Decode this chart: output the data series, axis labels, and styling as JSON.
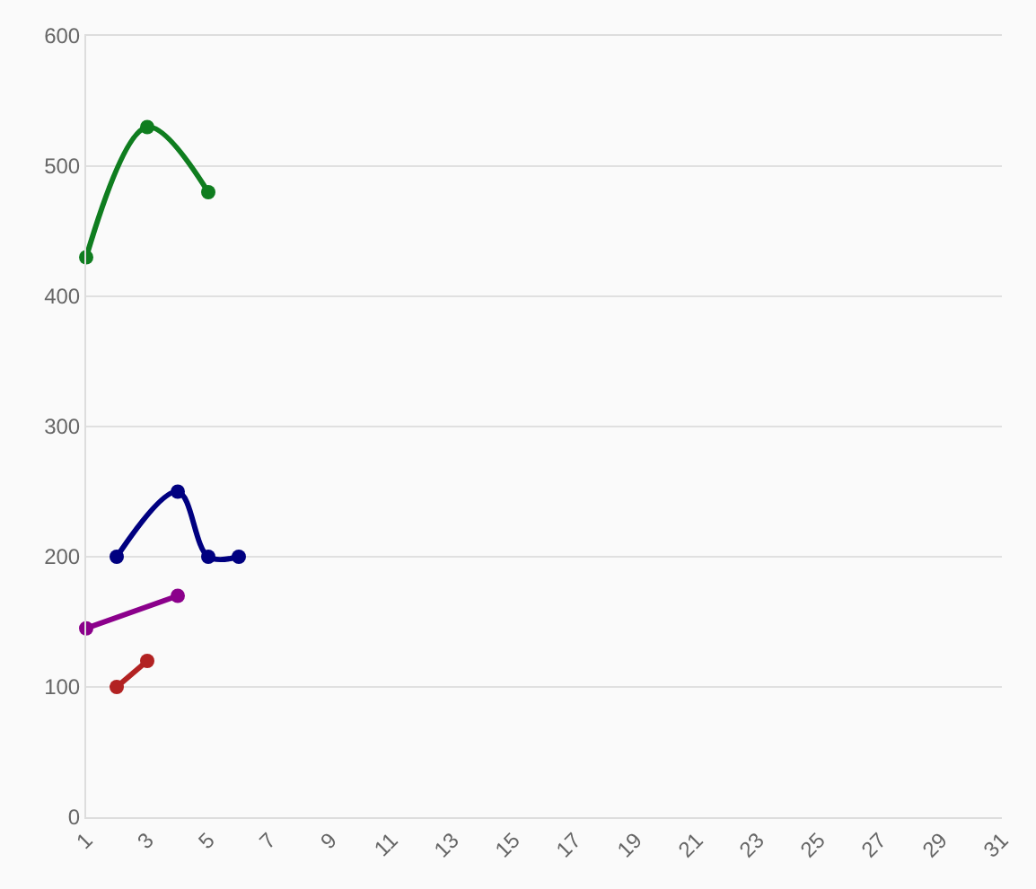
{
  "chart_data": {
    "type": "line",
    "xlim": [
      1,
      31
    ],
    "xticks": [
      1,
      3,
      5,
      7,
      9,
      11,
      13,
      15,
      17,
      19,
      21,
      23,
      25,
      27,
      29,
      31
    ],
    "ylim": [
      0,
      600
    ],
    "yticks": [
      0,
      100,
      200,
      300,
      400,
      500,
      600
    ],
    "grid": "y",
    "marker": "circle",
    "line_style": "solid",
    "series": [
      {
        "color": "#0f7d1f",
        "x": [
          1,
          3,
          5
        ],
        "values": [
          430,
          530,
          480
        ]
      },
      {
        "color": "#000080",
        "x": [
          2,
          4,
          5,
          6
        ],
        "values": [
          200,
          250,
          200,
          200
        ]
      },
      {
        "color": "#8b008b",
        "x": [
          1,
          4
        ],
        "values": [
          145,
          170
        ]
      },
      {
        "color": "#b22222",
        "x": [
          2,
          3
        ],
        "values": [
          100,
          120
        ]
      }
    ]
  }
}
